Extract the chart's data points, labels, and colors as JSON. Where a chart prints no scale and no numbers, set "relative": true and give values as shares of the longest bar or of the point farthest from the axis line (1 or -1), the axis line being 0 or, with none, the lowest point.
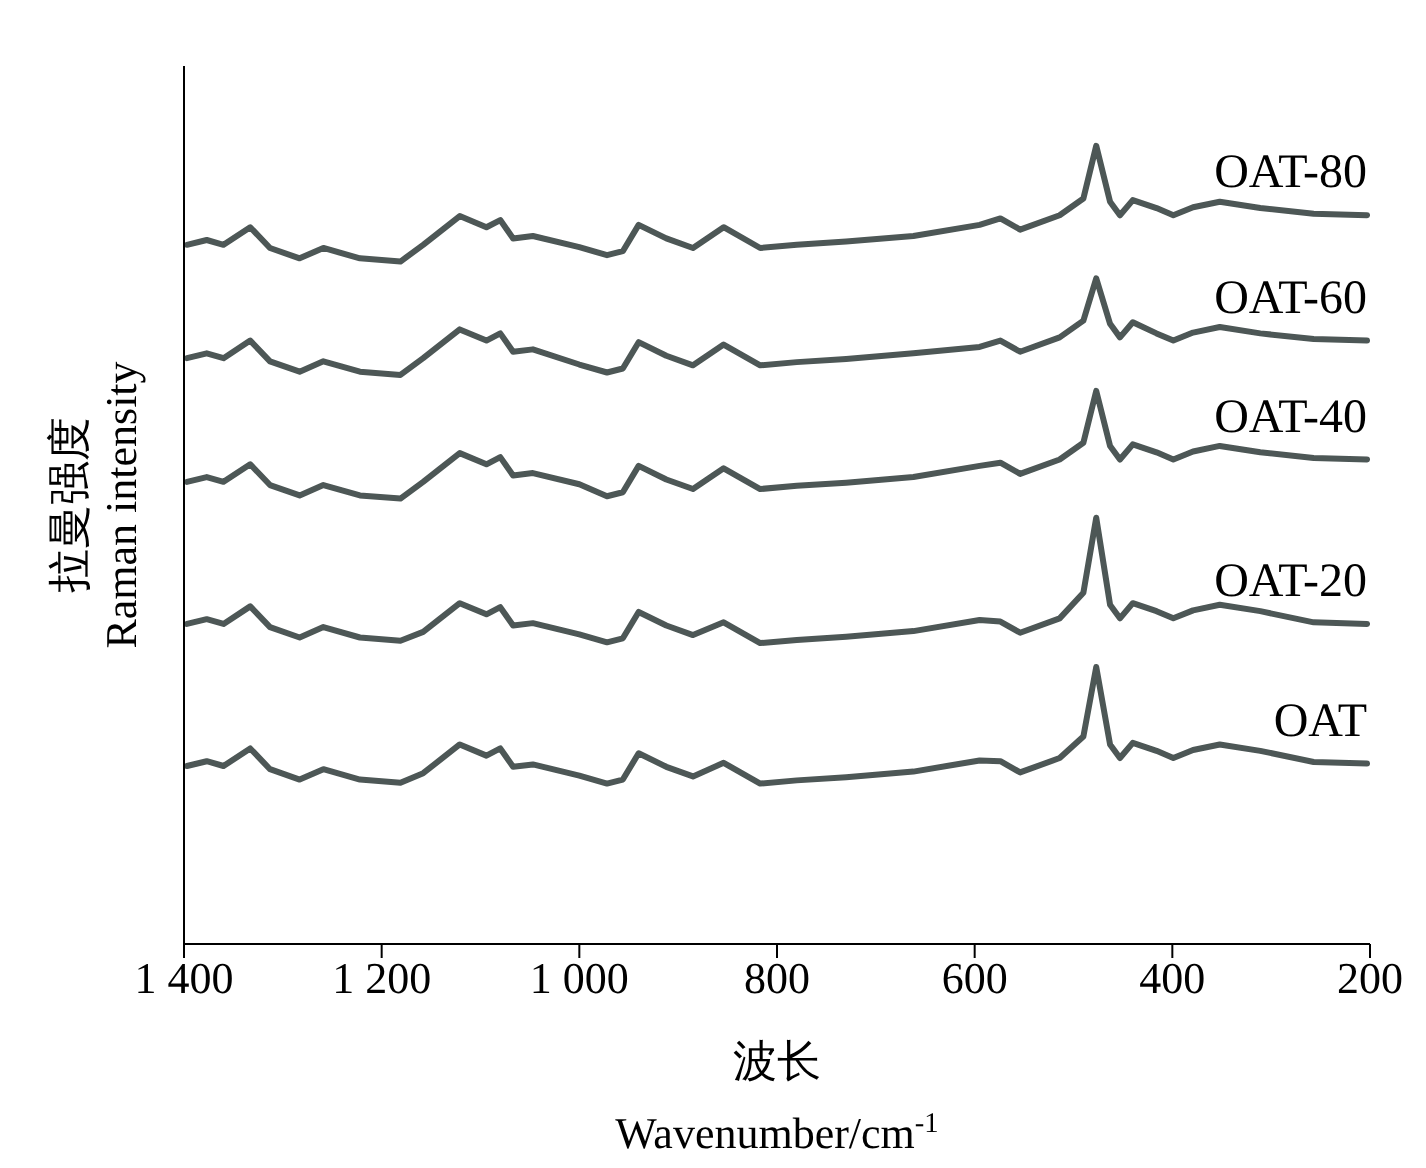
{
  "chart_data": {
    "type": "line",
    "relative": true,
    "xlabel": "波长\nWavenumber/cm$^{-1}$",
    "ylabel": "拉曼强度\nRaman intensity",
    "xlim": [
      1400,
      200
    ],
    "xticks": [
      {
        "value": 1400,
        "label": "1 400"
      },
      {
        "value": 1200,
        "label": "1 200"
      },
      {
        "value": 1000,
        "label": "1 000"
      },
      800,
      600,
      400,
      200
    ],
    "x": [
      1397,
      1377,
      1360,
      1333,
      1313,
      1283,
      1259,
      1222,
      1181,
      1158,
      1121,
      1094,
      1080,
      1067,
      1047,
      1000,
      972,
      956,
      940,
      912,
      885,
      854,
      817,
      780,
      730,
      662,
      595,
      574,
      554,
      514,
      490,
      477,
      463,
      453,
      440,
      416,
      399,
      379,
      352,
      311,
      257,
      203
    ],
    "series": [
      {
        "name": "OAT-80",
        "color": "#4d5756",
        "values": [
          0.876,
          0.882,
          0.876,
          0.898,
          0.872,
          0.859,
          0.872,
          0.859,
          0.855,
          0.876,
          0.912,
          0.898,
          0.907,
          0.884,
          0.887,
          0.873,
          0.863,
          0.868,
          0.901,
          0.884,
          0.872,
          0.898,
          0.872,
          0.876,
          0.88,
          0.887,
          0.901,
          0.909,
          0.895,
          0.913,
          0.934,
          1.0,
          0.93,
          0.913,
          0.932,
          0.922,
          0.913,
          0.923,
          0.93,
          0.922,
          0.915,
          0.913
        ]
      },
      {
        "name": "OAT-60",
        "color": "#4d5756",
        "values": [
          0.734,
          0.74,
          0.734,
          0.756,
          0.73,
          0.717,
          0.73,
          0.717,
          0.713,
          0.734,
          0.77,
          0.756,
          0.765,
          0.742,
          0.745,
          0.726,
          0.716,
          0.721,
          0.754,
          0.737,
          0.725,
          0.751,
          0.725,
          0.729,
          0.733,
          0.74,
          0.748,
          0.756,
          0.742,
          0.76,
          0.781,
          0.834,
          0.777,
          0.76,
          0.779,
          0.765,
          0.756,
          0.766,
          0.773,
          0.765,
          0.758,
          0.756
        ]
      },
      {
        "name": "OAT-40",
        "color": "#4d5756",
        "values": [
          0.579,
          0.585,
          0.579,
          0.601,
          0.575,
          0.562,
          0.575,
          0.562,
          0.558,
          0.579,
          0.615,
          0.601,
          0.61,
          0.587,
          0.59,
          0.576,
          0.561,
          0.566,
          0.599,
          0.582,
          0.57,
          0.596,
          0.57,
          0.574,
          0.578,
          0.585,
          0.599,
          0.603,
          0.589,
          0.607,
          0.628,
          0.693,
          0.624,
          0.607,
          0.626,
          0.616,
          0.607,
          0.617,
          0.624,
          0.616,
          0.609,
          0.607
        ]
      },
      {
        "name": "OAT-20",
        "color": "#4d5756",
        "values": [
          0.401,
          0.407,
          0.401,
          0.423,
          0.397,
          0.384,
          0.397,
          0.384,
          0.38,
          0.391,
          0.427,
          0.413,
          0.422,
          0.399,
          0.402,
          0.388,
          0.378,
          0.383,
          0.416,
          0.399,
          0.387,
          0.403,
          0.377,
          0.381,
          0.385,
          0.392,
          0.406,
          0.404,
          0.39,
          0.408,
          0.44,
          0.534,
          0.425,
          0.408,
          0.427,
          0.417,
          0.408,
          0.418,
          0.425,
          0.417,
          0.403,
          0.401
        ]
      },
      {
        "name": "OAT",
        "color": "#4d5756",
        "values": [
          0.223,
          0.229,
          0.223,
          0.245,
          0.219,
          0.206,
          0.219,
          0.206,
          0.202,
          0.214,
          0.25,
          0.236,
          0.245,
          0.222,
          0.225,
          0.211,
          0.201,
          0.206,
          0.239,
          0.222,
          0.21,
          0.227,
          0.201,
          0.205,
          0.209,
          0.216,
          0.23,
          0.229,
          0.215,
          0.233,
          0.26,
          0.347,
          0.25,
          0.233,
          0.252,
          0.242,
          0.233,
          0.243,
          0.25,
          0.242,
          0.228,
          0.226
        ]
      }
    ]
  }
}
